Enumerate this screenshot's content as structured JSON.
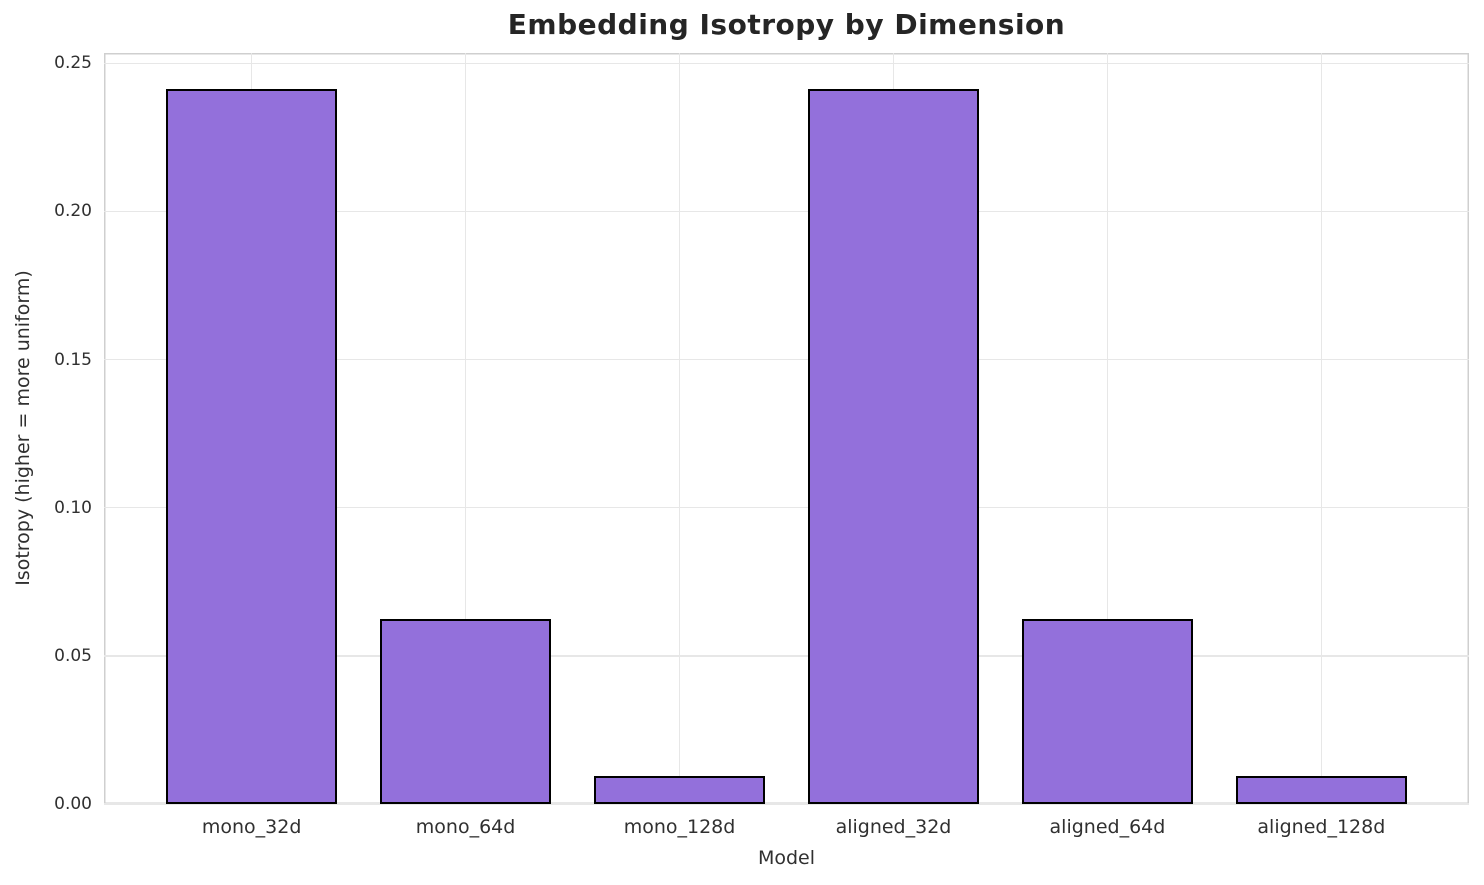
{
  "chart_data": {
    "type": "bar",
    "title": "Embedding Isotropy by Dimension",
    "xlabel": "Model",
    "ylabel": "Isotropy (higher = more uniform)",
    "categories": [
      "mono_32d",
      "mono_64d",
      "mono_128d",
      "aligned_32d",
      "aligned_64d",
      "aligned_128d"
    ],
    "values": [
      0.2414,
      0.0623,
      0.0095,
      0.2414,
      0.0623,
      0.0095
    ],
    "ylim": [
      0,
      0.2535
    ],
    "xlim": [
      -0.69,
      5.69
    ],
    "bar_width": 0.8,
    "yticks": {
      "values": [
        0,
        0.05,
        0.1,
        0.15,
        0.2,
        0.25
      ],
      "labels": [
        "0.00",
        "0.05",
        "0.10",
        "0.15",
        "0.20",
        "0.25"
      ]
    },
    "grid": true,
    "legend_position": "none",
    "colors": {
      "bar_fill": "#9370DB",
      "bar_edge": "#000000",
      "grid": "#E7E7E7",
      "spine": "#CFCFCF",
      "text": "#303030",
      "title_text": "#252525",
      "background": "#FFFFFF"
    }
  }
}
